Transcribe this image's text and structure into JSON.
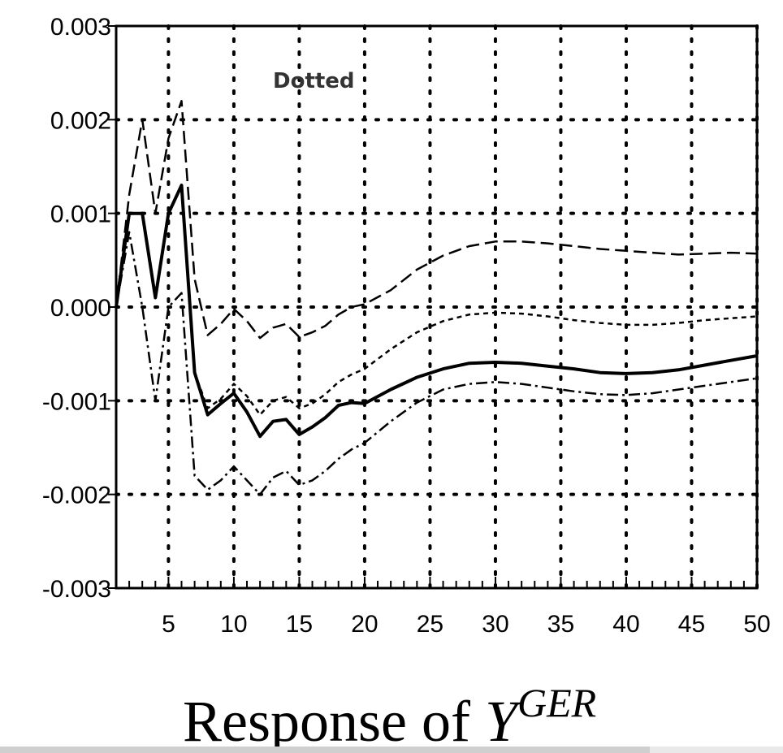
{
  "chart_data": {
    "type": "line",
    "x_ticks": [
      5,
      10,
      15,
      20,
      25,
      30,
      35,
      40,
      45,
      50
    ],
    "y_ticks": [
      -0.003,
      -0.002,
      -0.001,
      0.0,
      0.001,
      0.002,
      0.003
    ],
    "y_tick_labels": [
      "-0.003",
      "-0.002",
      "-0.001",
      "0.000",
      "0.001",
      "0.002",
      "0.003"
    ],
    "xlim": [
      1,
      50
    ],
    "ylim": [
      -0.003,
      0.003
    ],
    "grid": true,
    "annotation": "Dotted",
    "caption_main": "Response of ",
    "caption_var": "Y",
    "caption_sup": "GER",
    "series": [
      {
        "style": "solid",
        "x": [
          1,
          2,
          3,
          4,
          5,
          6,
          7,
          8,
          9,
          10,
          11,
          12,
          13,
          14,
          15,
          16,
          17,
          18,
          19,
          20,
          22,
          24,
          26,
          28,
          30,
          32,
          34,
          36,
          38,
          40,
          42,
          44,
          46,
          48,
          50
        ],
        "y": [
          0.0,
          0.001,
          0.001,
          0.0001,
          0.001,
          0.0013,
          -0.0007,
          -0.00115,
          -0.00103,
          -0.00092,
          -0.00112,
          -0.00138,
          -0.00122,
          -0.0012,
          -0.00136,
          -0.00128,
          -0.00118,
          -0.00105,
          -0.00102,
          -0.00103,
          -0.00088,
          -0.00075,
          -0.00066,
          -0.0006,
          -0.00059,
          -0.0006,
          -0.00063,
          -0.00066,
          -0.0007,
          -0.00071,
          -0.0007,
          -0.00067,
          -0.00062,
          -0.00057,
          -0.00052
        ]
      },
      {
        "style": "dashed",
        "x": [
          1,
          2,
          3,
          4,
          5,
          6,
          7,
          8,
          9,
          10,
          11,
          12,
          13,
          14,
          15,
          16,
          17,
          18,
          19,
          20,
          22,
          24,
          26,
          28,
          30,
          32,
          34,
          36,
          38,
          40,
          42,
          44,
          46,
          48,
          50
        ],
        "y": [
          0.0,
          0.0012,
          0.002,
          0.001,
          0.0018,
          0.0022,
          0.0003,
          -0.0003,
          -0.00018,
          -2e-05,
          -0.00015,
          -0.00033,
          -0.00022,
          -0.00018,
          -0.00032,
          -0.00027,
          -0.0002,
          -8e-05,
          0.0,
          3e-05,
          0.00018,
          0.0004,
          0.00055,
          0.00065,
          0.0007,
          0.0007,
          0.00068,
          0.00065,
          0.00062,
          0.0006,
          0.00058,
          0.00056,
          0.00057,
          0.00058,
          0.00057
        ]
      },
      {
        "style": "dashdot",
        "x": [
          1,
          2,
          3,
          4,
          5,
          6,
          7,
          8,
          9,
          10,
          11,
          12,
          13,
          14,
          15,
          16,
          17,
          18,
          19,
          20,
          22,
          24,
          26,
          28,
          30,
          32,
          34,
          36,
          38,
          40,
          42,
          44,
          46,
          48,
          50
        ],
        "y": [
          0.0,
          0.0008,
          0.0,
          -0.001,
          0.0,
          0.00015,
          -0.0018,
          -0.00195,
          -0.00185,
          -0.0017,
          -0.00185,
          -0.002,
          -0.00182,
          -0.00175,
          -0.0019,
          -0.00185,
          -0.00175,
          -0.00162,
          -0.00152,
          -0.00145,
          -0.00122,
          -0.00102,
          -0.00088,
          -0.00082,
          -0.0008,
          -0.00082,
          -0.00086,
          -0.0009,
          -0.00093,
          -0.00094,
          -0.00092,
          -0.00088,
          -0.00084,
          -0.0008,
          -0.00076
        ]
      },
      {
        "style": "dotted",
        "x": [
          7,
          8,
          9,
          10,
          11,
          12,
          13,
          14,
          15,
          16,
          17,
          18,
          19,
          20,
          22,
          24,
          26,
          28,
          30,
          32,
          34,
          36,
          38,
          40,
          42,
          44,
          46,
          48,
          50
        ],
        "y": [
          -0.0007,
          -0.00108,
          -0.00098,
          -0.00082,
          -0.00095,
          -0.00115,
          -0.001,
          -0.00096,
          -0.00108,
          -0.00103,
          -0.00093,
          -0.0008,
          -0.00072,
          -0.00066,
          -0.00045,
          -0.00027,
          -0.00015,
          -8e-05,
          -6e-05,
          -7e-05,
          -0.0001,
          -0.00014,
          -0.00017,
          -0.00019,
          -0.00019,
          -0.00017,
          -0.00014,
          -0.00012,
          -0.0001
        ]
      }
    ],
    "colors": {
      "line": "#000000",
      "grid": "#000000",
      "annotation": "#333333"
    }
  }
}
